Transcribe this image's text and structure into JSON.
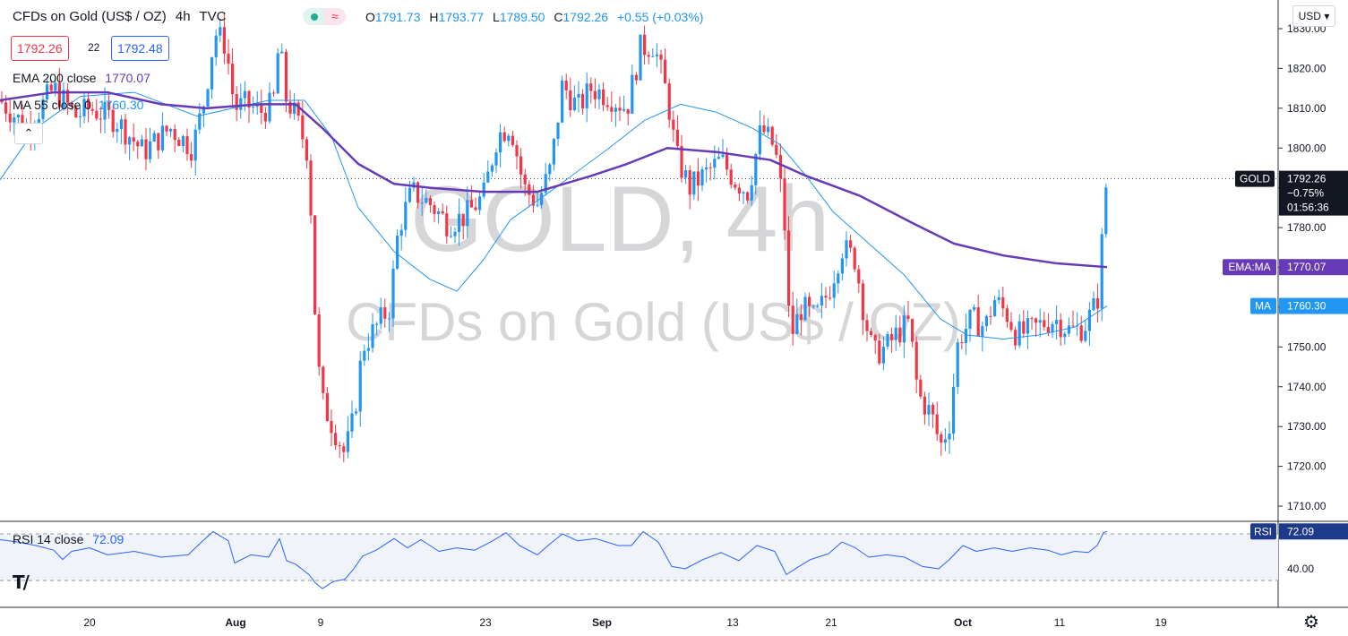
{
  "header": {
    "symbol_title": "CFDs on Gold (US$ / OZ)",
    "interval": "4h",
    "source": "TVC",
    "ohlc": [
      {
        "k": "O",
        "v": "1791.73"
      },
      {
        "k": "H",
        "v": "1793.77"
      },
      {
        "k": "L",
        "v": "1789.50"
      },
      {
        "k": "C",
        "v": "1792.26"
      },
      {
        "k": "",
        "v": "+0.55 (+0.03%)"
      }
    ],
    "bid": "1792.26",
    "spread": "22",
    "ask": "1792.48",
    "currency": "USD",
    "collapse_glyph": "⌃"
  },
  "indicators": {
    "ema": {
      "label": "EMA 200 close",
      "value": "1770.07",
      "color": "#673ab7"
    },
    "ma": {
      "label": "MA 55 close 0",
      "value": "1760.30",
      "color": "#2196f3"
    },
    "rsi": {
      "label": "RSI 14 close",
      "value": "72.09",
      "color": "#2962ff"
    }
  },
  "watermark": {
    "line1": "GOLD, 4h",
    "line2": "CFDs on Gold (US$ / OZ)"
  },
  "icons": {
    "logo": "tradingview-logo-icon",
    "settings": "gear-icon"
  },
  "chart_data": {
    "type": "candlestick",
    "series_colors": {
      "up": "#2196f3",
      "down": "#f23645"
    },
    "price_axis": {
      "min": 1707,
      "max": 1832,
      "ticks": [
        "1710.00",
        "1720.00",
        "1730.00",
        "1740.00",
        "1750.00",
        "1760.00",
        "1770.00",
        "1780.00",
        "1790.00",
        "1800.00",
        "1810.00",
        "1820.00",
        "1830.00"
      ]
    },
    "time_axis": {
      "labels": [
        "20",
        "Aug",
        "9",
        "23",
        "Sep",
        "13",
        "21",
        "Oct",
        "11",
        "19"
      ],
      "bold": [
        "Aug",
        "Sep",
        "Oct"
      ]
    },
    "price_path": [
      [
        0,
        1812
      ],
      [
        30,
        1805
      ],
      [
        60,
        1815
      ],
      [
        85,
        1808
      ],
      [
        100,
        1810
      ],
      [
        130,
        1807
      ],
      [
        160,
        1799
      ],
      [
        190,
        1805
      ],
      [
        215,
        1800
      ],
      [
        228,
        1812
      ],
      [
        240,
        1829
      ],
      [
        252,
        1826
      ],
      [
        262,
        1810
      ],
      [
        275,
        1811
      ],
      [
        290,
        1809
      ],
      [
        305,
        1811
      ],
      [
        312,
        1828
      ],
      [
        318,
        1813
      ],
      [
        330,
        1808
      ],
      [
        345,
        1798
      ],
      [
        350,
        1765
      ],
      [
        358,
        1737
      ],
      [
        372,
        1730
      ],
      [
        385,
        1723
      ],
      [
        395,
        1732
      ],
      [
        405,
        1750
      ],
      [
        420,
        1755
      ],
      [
        435,
        1760
      ],
      [
        445,
        1780
      ],
      [
        460,
        1789
      ],
      [
        480,
        1786
      ],
      [
        500,
        1781
      ],
      [
        520,
        1783
      ],
      [
        540,
        1788
      ],
      [
        555,
        1803
      ],
      [
        570,
        1806
      ],
      [
        585,
        1790
      ],
      [
        600,
        1786
      ],
      [
        615,
        1795
      ],
      [
        628,
        1816
      ],
      [
        645,
        1810
      ],
      [
        660,
        1815
      ],
      [
        680,
        1813
      ],
      [
        700,
        1810
      ],
      [
        715,
        1825
      ],
      [
        730,
        1826
      ],
      [
        745,
        1813
      ],
      [
        755,
        1798
      ],
      [
        770,
        1790
      ],
      [
        790,
        1794
      ],
      [
        805,
        1797
      ],
      [
        820,
        1792
      ],
      [
        835,
        1789
      ],
      [
        850,
        1805
      ],
      [
        865,
        1800
      ],
      [
        875,
        1785
      ],
      [
        882,
        1752
      ],
      [
        895,
        1760
      ],
      [
        910,
        1757
      ],
      [
        925,
        1764
      ],
      [
        940,
        1775
      ],
      [
        955,
        1772
      ],
      [
        965,
        1758
      ],
      [
        975,
        1748
      ],
      [
        990,
        1750
      ],
      [
        1000,
        1753
      ],
      [
        1015,
        1756
      ],
      [
        1025,
        1738
      ],
      [
        1040,
        1733
      ],
      [
        1050,
        1725
      ],
      [
        1060,
        1731
      ],
      [
        1070,
        1752
      ],
      [
        1085,
        1757
      ],
      [
        1100,
        1755
      ],
      [
        1110,
        1762
      ],
      [
        1125,
        1758
      ],
      [
        1135,
        1753
      ],
      [
        1150,
        1754
      ],
      [
        1165,
        1756
      ],
      [
        1178,
        1757
      ],
      [
        1195,
        1754
      ],
      [
        1210,
        1755
      ],
      [
        1222,
        1760
      ],
      [
        1228,
        1764
      ],
      [
        1232,
        1786
      ],
      [
        1236,
        1792.26
      ]
    ],
    "ema_path": [
      [
        0,
        1812
      ],
      [
        60,
        1814
      ],
      [
        120,
        1814
      ],
      [
        180,
        1811
      ],
      [
        230,
        1810
      ],
      [
        290,
        1811
      ],
      [
        330,
        1811
      ],
      [
        360,
        1805
      ],
      [
        400,
        1796
      ],
      [
        440,
        1791
      ],
      [
        480,
        1790
      ],
      [
        540,
        1789
      ],
      [
        600,
        1789
      ],
      [
        660,
        1793
      ],
      [
        700,
        1796
      ],
      [
        745,
        1800
      ],
      [
        800,
        1799
      ],
      [
        860,
        1797
      ],
      [
        900,
        1793
      ],
      [
        960,
        1788
      ],
      [
        1020,
        1781
      ],
      [
        1065,
        1776
      ],
      [
        1120,
        1773
      ],
      [
        1180,
        1771
      ],
      [
        1236,
        1770.07
      ]
    ],
    "ma_path": [
      [
        0,
        1792
      ],
      [
        40,
        1805
      ],
      [
        90,
        1813
      ],
      [
        150,
        1814
      ],
      [
        220,
        1808
      ],
      [
        300,
        1812
      ],
      [
        340,
        1812
      ],
      [
        370,
        1803
      ],
      [
        400,
        1785
      ],
      [
        440,
        1774
      ],
      [
        480,
        1767
      ],
      [
        510,
        1764
      ],
      [
        540,
        1772
      ],
      [
        570,
        1782
      ],
      [
        620,
        1790
      ],
      [
        680,
        1800
      ],
      [
        720,
        1807
      ],
      [
        760,
        1811
      ],
      [
        800,
        1809
      ],
      [
        840,
        1805
      ],
      [
        870,
        1801
      ],
      [
        900,
        1793
      ],
      [
        930,
        1784
      ],
      [
        970,
        1776
      ],
      [
        1010,
        1768
      ],
      [
        1050,
        1757
      ],
      [
        1080,
        1753
      ],
      [
        1120,
        1752
      ],
      [
        1160,
        1753
      ],
      [
        1200,
        1755
      ],
      [
        1236,
        1760.3
      ]
    ],
    "rsi": {
      "levels": [
        30,
        70
      ],
      "tick": "40.00",
      "path": [
        [
          0,
          65
        ],
        [
          20,
          63
        ],
        [
          40,
          60
        ],
        [
          60,
          56
        ],
        [
          70,
          48
        ],
        [
          80,
          55
        ],
        [
          100,
          58
        ],
        [
          120,
          52
        ],
        [
          150,
          55
        ],
        [
          180,
          50
        ],
        [
          210,
          52
        ],
        [
          225,
          63
        ],
        [
          238,
          72
        ],
        [
          255,
          64
        ],
        [
          262,
          45
        ],
        [
          280,
          52
        ],
        [
          300,
          50
        ],
        [
          312,
          66
        ],
        [
          320,
          47
        ],
        [
          330,
          44
        ],
        [
          345,
          35
        ],
        [
          352,
          28
        ],
        [
          360,
          23
        ],
        [
          372,
          29
        ],
        [
          385,
          31
        ],
        [
          395,
          40
        ],
        [
          405,
          51
        ],
        [
          420,
          56
        ],
        [
          440,
          66
        ],
        [
          455,
          58
        ],
        [
          470,
          65
        ],
        [
          490,
          55
        ],
        [
          510,
          58
        ],
        [
          530,
          56
        ],
        [
          550,
          64
        ],
        [
          565,
          71
        ],
        [
          580,
          60
        ],
        [
          600,
          52
        ],
        [
          615,
          62
        ],
        [
          628,
          70
        ],
        [
          645,
          64
        ],
        [
          665,
          66
        ],
        [
          690,
          60
        ],
        [
          705,
          60
        ],
        [
          718,
          72
        ],
        [
          735,
          63
        ],
        [
          750,
          42
        ],
        [
          765,
          40
        ],
        [
          785,
          48
        ],
        [
          805,
          54
        ],
        [
          825,
          47
        ],
        [
          845,
          60
        ],
        [
          865,
          55
        ],
        [
          878,
          35
        ],
        [
          890,
          41
        ],
        [
          905,
          48
        ],
        [
          925,
          53
        ],
        [
          940,
          63
        ],
        [
          955,
          58
        ],
        [
          970,
          50
        ],
        [
          990,
          52
        ],
        [
          1010,
          50
        ],
        [
          1030,
          42
        ],
        [
          1048,
          40
        ],
        [
          1060,
          48
        ],
        [
          1075,
          60
        ],
        [
          1090,
          55
        ],
        [
          1110,
          58
        ],
        [
          1130,
          55
        ],
        [
          1150,
          58
        ],
        [
          1170,
          56
        ],
        [
          1185,
          52
        ],
        [
          1200,
          55
        ],
        [
          1215,
          54
        ],
        [
          1225,
          60
        ],
        [
          1232,
          71
        ],
        [
          1236,
          72.09
        ]
      ]
    },
    "price_tags": [
      {
        "label": "GOLD",
        "value": "1792.26",
        "change": "−0.75%",
        "countdown": "01:56:36",
        "color": "#131722"
      },
      {
        "label": "EMA:MA",
        "value": "1770.07",
        "color": "#673ab7"
      },
      {
        "label": "MA",
        "value": "1760.30",
        "color": "#2196f3"
      },
      {
        "label": "RSI",
        "value": "72.09",
        "color": "#2962ff"
      }
    ]
  }
}
